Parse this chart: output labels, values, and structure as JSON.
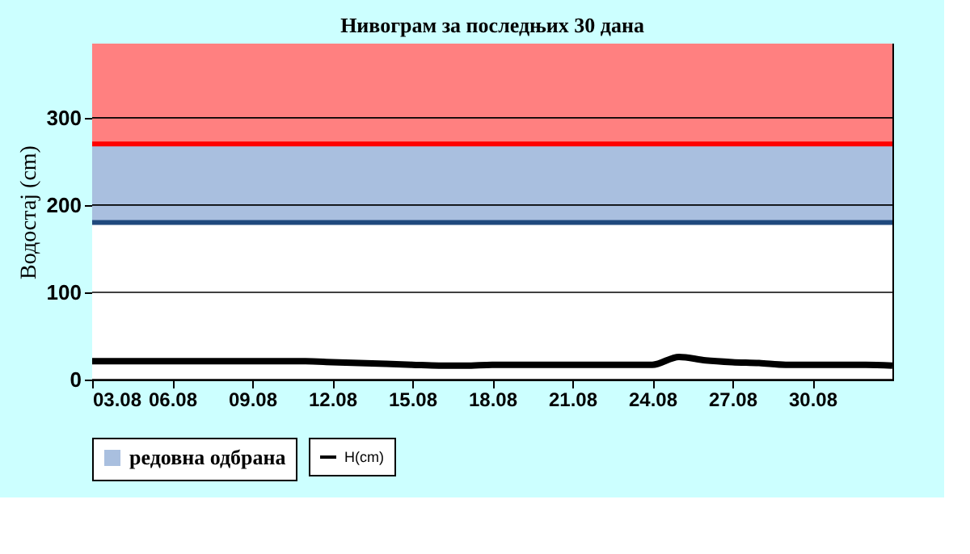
{
  "chart_data": {
    "type": "line",
    "title": "Нивограм за последњих 30 дана",
    "ylabel": "Водостај (cm)",
    "x": [
      "--08-03",
      "--08-04",
      "--08-05",
      "--08-06",
      "--08-07",
      "--08-08",
      "--08-09",
      "--08-10",
      "--08-11",
      "--08-12",
      "--08-13",
      "--08-14",
      "--08-15",
      "--08-16",
      "--08-17",
      "--08-18",
      "--08-19",
      "--08-20",
      "--08-21",
      "--08-22",
      "--08-23",
      "--08-24",
      "--08-25",
      "--08-26",
      "--08-27",
      "--08-28",
      "--08-29",
      "--08-30",
      "--08-31",
      "--09-01",
      "--09-02"
    ],
    "series": [
      {
        "name": "H(cm)",
        "color": "#000000",
        "values": [
          21,
          21,
          21,
          21,
          21,
          21,
          21,
          21,
          21,
          20,
          19,
          18,
          17,
          16,
          16,
          17,
          17,
          17,
          17,
          17,
          17,
          17,
          26,
          22,
          20,
          19,
          17,
          17,
          17,
          17,
          16
        ]
      }
    ],
    "bands": [
      {
        "axis": "y",
        "from": 0,
        "to": 180,
        "color": "#ffffff"
      },
      {
        "axis": "y",
        "from": 180,
        "to": 270,
        "color": "#a9bfdf",
        "label": "редовна одбрана"
      },
      {
        "axis": "y",
        "from": 270,
        "to": 385,
        "color": "#ff8080"
      }
    ],
    "ref_lines": [
      {
        "axis": "y",
        "value": 180,
        "color": "#1f497d"
      },
      {
        "axis": "y",
        "value": 270,
        "color": "#ff0000"
      }
    ],
    "xlim": [
      "--08-03",
      "--09-02"
    ],
    "xticks": [
      {
        "value": "--08-03",
        "label": "03.08"
      },
      {
        "value": "--08-06",
        "label": "06.08"
      },
      {
        "value": "--08-09",
        "label": "09.08"
      },
      {
        "value": "--08-12",
        "label": "12.08"
      },
      {
        "value": "--08-15",
        "label": "15.08"
      },
      {
        "value": "--08-18",
        "label": "18.08"
      },
      {
        "value": "--08-21",
        "label": "21.08"
      },
      {
        "value": "--08-24",
        "label": "24.08"
      },
      {
        "value": "--08-27",
        "label": "27.08"
      },
      {
        "value": "--08-30",
        "label": "30.08"
      }
    ],
    "ylim": [
      0,
      385
    ],
    "yticks": [
      0,
      100,
      200,
      300
    ],
    "grid": "y",
    "legend": "bottom",
    "marker": "none",
    "line_style": "solid"
  }
}
